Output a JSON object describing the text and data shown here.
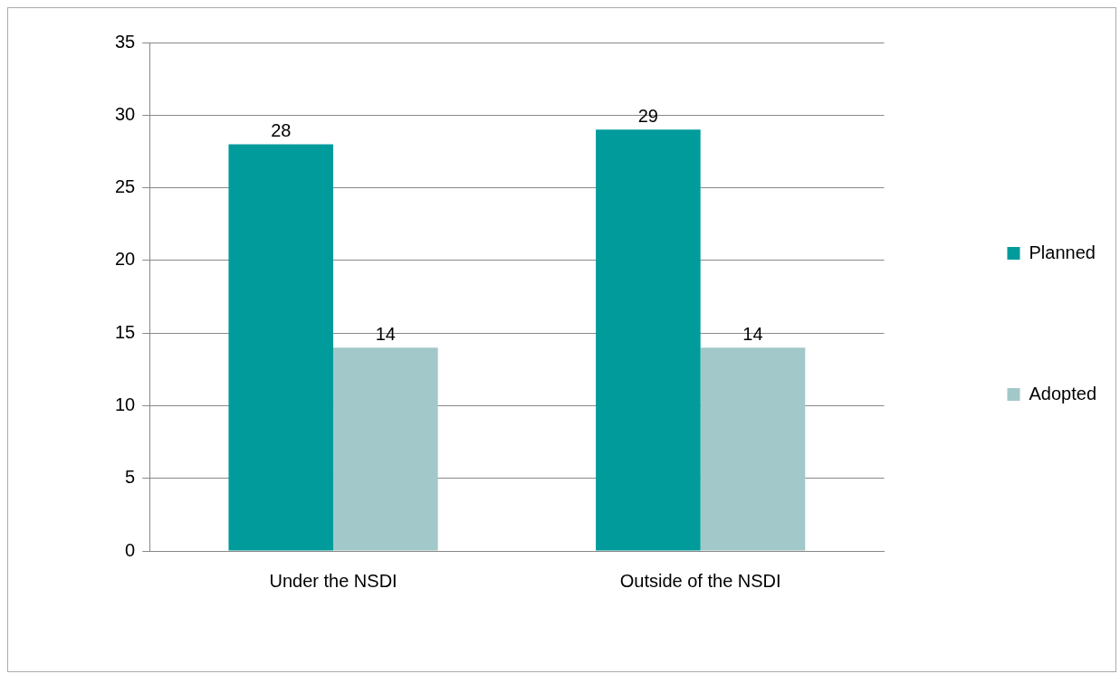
{
  "chart_data": {
    "type": "bar",
    "categories": [
      "Under the NSDI",
      "Outside of the NSDI"
    ],
    "series": [
      {
        "name": "Planned",
        "color": "#029b9c",
        "values": [
          28,
          29
        ]
      },
      {
        "name": "Adopted",
        "color": "#a3c8c9",
        "values": [
          14,
          14
        ]
      }
    ],
    "ylim": [
      0,
      35
    ],
    "yticks": [
      0,
      5,
      10,
      15,
      20,
      25,
      30,
      35
    ],
    "grid": "y",
    "legend": "right",
    "data_labels": true
  }
}
